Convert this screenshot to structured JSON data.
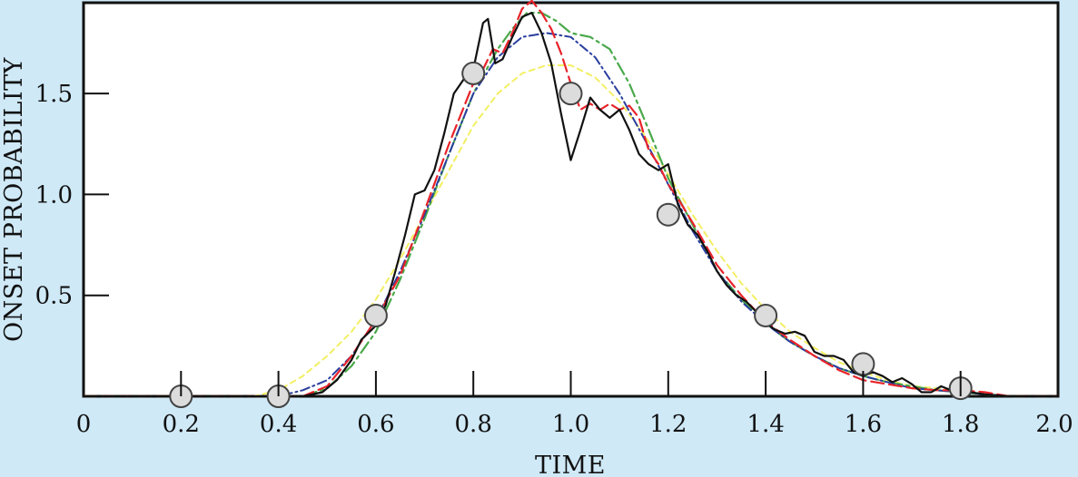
{
  "chart_data": {
    "type": "line",
    "title": "",
    "xlabel": "TIME",
    "ylabel": "ONSET PROBABILITY",
    "xlim": [
      0,
      2.0
    ],
    "ylim": [
      0,
      1.95
    ],
    "x_ticks": [
      0,
      0.2,
      0.4,
      0.6,
      0.8,
      1.0,
      1.2,
      1.4,
      1.6,
      1.8,
      2.0
    ],
    "x_tick_labels": [
      "0",
      "0.2",
      "0.4",
      "0.6",
      "0.8",
      "1.0",
      "1.2",
      "1.4",
      "1.6",
      "1.8",
      "2.0"
    ],
    "y_ticks": [
      0.5,
      1.0,
      1.5
    ],
    "y_tick_labels": [
      "0.5",
      "1.0",
      "1.5"
    ],
    "grid": false,
    "background": "#cfe9f7",
    "plot_background": "#ffffff",
    "markers": {
      "style": "circle",
      "fill": "#dcdcdc",
      "stroke": "#444444",
      "points": [
        {
          "x": 0.2,
          "y": 0.0
        },
        {
          "x": 0.4,
          "y": 0.0
        },
        {
          "x": 0.6,
          "y": 0.4
        },
        {
          "x": 0.8,
          "y": 1.6
        },
        {
          "x": 1.0,
          "y": 1.5
        },
        {
          "x": 1.2,
          "y": 0.9
        },
        {
          "x": 1.4,
          "y": 0.4
        },
        {
          "x": 1.6,
          "y": 0.16
        },
        {
          "x": 1.8,
          "y": 0.04
        }
      ]
    },
    "series": [
      {
        "color": "#111111",
        "dash": "solid",
        "width": 2.2,
        "x": [
          0.0,
          0.45,
          0.49,
          0.52,
          0.55,
          0.57,
          0.6,
          0.62,
          0.64,
          0.66,
          0.68,
          0.7,
          0.72,
          0.74,
          0.76,
          0.78,
          0.8,
          0.82,
          0.83,
          0.845,
          0.86,
          0.88,
          0.9,
          0.92,
          0.94,
          0.96,
          0.98,
          1.0,
          1.02,
          1.04,
          1.06,
          1.08,
          1.1,
          1.12,
          1.14,
          1.16,
          1.18,
          1.2,
          1.22,
          1.24,
          1.26,
          1.28,
          1.3,
          1.32,
          1.34,
          1.36,
          1.38,
          1.4,
          1.42,
          1.44,
          1.46,
          1.48,
          1.5,
          1.52,
          1.54,
          1.56,
          1.58,
          1.6,
          1.62,
          1.64,
          1.66,
          1.68,
          1.7,
          1.72,
          1.74,
          1.76,
          1.78,
          1.8,
          1.82,
          1.85,
          1.9,
          2.0
        ],
        "y": [
          0.0,
          0.0,
          0.02,
          0.08,
          0.18,
          0.28,
          0.35,
          0.45,
          0.62,
          0.8,
          1.0,
          1.02,
          1.12,
          1.3,
          1.5,
          1.57,
          1.62,
          1.85,
          1.87,
          1.65,
          1.67,
          1.78,
          1.88,
          1.9,
          1.8,
          1.65,
          1.4,
          1.17,
          1.32,
          1.48,
          1.42,
          1.38,
          1.42,
          1.32,
          1.2,
          1.15,
          1.12,
          1.15,
          0.95,
          0.85,
          0.8,
          0.72,
          0.62,
          0.55,
          0.5,
          0.47,
          0.42,
          0.36,
          0.33,
          0.31,
          0.32,
          0.3,
          0.22,
          0.2,
          0.2,
          0.18,
          0.12,
          0.1,
          0.12,
          0.1,
          0.07,
          0.09,
          0.06,
          0.02,
          0.02,
          0.05,
          0.03,
          0.06,
          0.02,
          0.01,
          0.0,
          0.0
        ]
      },
      {
        "color": "#e8232a",
        "dash": "long-dash",
        "width": 2.2,
        "x": [
          0.0,
          0.45,
          0.5,
          0.55,
          0.6,
          0.65,
          0.7,
          0.75,
          0.8,
          0.82,
          0.84,
          0.86,
          0.88,
          0.9,
          0.92,
          0.94,
          0.96,
          0.98,
          1.0,
          1.02,
          1.04,
          1.06,
          1.08,
          1.1,
          1.12,
          1.14,
          1.16,
          1.18,
          1.2,
          1.22,
          1.24,
          1.26,
          1.3,
          1.35,
          1.4,
          1.45,
          1.5,
          1.55,
          1.6,
          1.65,
          1.7,
          1.75,
          1.8,
          1.85,
          1.9,
          2.0
        ],
        "y": [
          0.0,
          0.0,
          0.05,
          0.2,
          0.38,
          0.6,
          0.92,
          1.25,
          1.55,
          1.62,
          1.72,
          1.7,
          1.8,
          1.92,
          1.96,
          1.9,
          1.82,
          1.7,
          1.55,
          1.42,
          1.45,
          1.42,
          1.45,
          1.42,
          1.44,
          1.38,
          1.22,
          1.15,
          1.05,
          0.98,
          0.9,
          0.82,
          0.65,
          0.5,
          0.37,
          0.28,
          0.2,
          0.13,
          0.08,
          0.06,
          0.04,
          0.03,
          0.03,
          0.02,
          0.0,
          0.0
        ]
      },
      {
        "color": "#2a3e9f",
        "dash": "dash-dot",
        "width": 2.0,
        "x": [
          0.0,
          0.4,
          0.45,
          0.5,
          0.55,
          0.6,
          0.65,
          0.7,
          0.75,
          0.8,
          0.85,
          0.9,
          0.95,
          1.0,
          1.05,
          1.1,
          1.15,
          1.2,
          1.25,
          1.3,
          1.35,
          1.4,
          1.45,
          1.5,
          1.55,
          1.6,
          1.65,
          1.7,
          1.75,
          1.8,
          1.9,
          2.0
        ],
        "y": [
          0.0,
          0.0,
          0.03,
          0.08,
          0.2,
          0.38,
          0.62,
          0.9,
          1.2,
          1.5,
          1.68,
          1.78,
          1.8,
          1.78,
          1.68,
          1.5,
          1.28,
          1.05,
          0.82,
          0.62,
          0.47,
          0.36,
          0.27,
          0.2,
          0.14,
          0.1,
          0.07,
          0.04,
          0.03,
          0.02,
          0.0,
          0.0
        ]
      },
      {
        "color": "#4aa84a",
        "dash": "long-dash-dot",
        "width": 2.2,
        "x": [
          0.0,
          0.45,
          0.5,
          0.55,
          0.6,
          0.65,
          0.7,
          0.75,
          0.8,
          0.85,
          0.88,
          0.91,
          0.94,
          0.97,
          1.0,
          1.04,
          1.08,
          1.12,
          1.16,
          1.2,
          1.25,
          1.3,
          1.35,
          1.4,
          1.45,
          1.5,
          1.55,
          1.6,
          1.65,
          1.7,
          1.75,
          1.8,
          1.85,
          1.9,
          2.0
        ],
        "y": [
          0.0,
          0.0,
          0.04,
          0.15,
          0.32,
          0.58,
          0.88,
          1.2,
          1.5,
          1.72,
          1.82,
          1.9,
          1.9,
          1.86,
          1.8,
          1.78,
          1.72,
          1.55,
          1.32,
          1.08,
          0.85,
          0.62,
          0.48,
          0.36,
          0.27,
          0.2,
          0.14,
          0.1,
          0.07,
          0.05,
          0.03,
          0.02,
          0.01,
          0.0,
          0.0
        ]
      },
      {
        "color": "#f3ef63",
        "dash": "short-dash",
        "width": 2.0,
        "x": [
          0.0,
          0.35,
          0.4,
          0.45,
          0.5,
          0.55,
          0.6,
          0.65,
          0.7,
          0.75,
          0.8,
          0.85,
          0.9,
          0.95,
          1.0,
          1.05,
          1.1,
          1.15,
          1.2,
          1.25,
          1.3,
          1.35,
          1.4,
          1.45,
          1.5,
          1.55,
          1.6,
          1.65,
          1.7,
          1.75,
          1.8,
          1.85,
          1.9,
          2.0
        ],
        "y": [
          0.0,
          0.0,
          0.03,
          0.1,
          0.2,
          0.32,
          0.48,
          0.68,
          0.9,
          1.12,
          1.34,
          1.5,
          1.6,
          1.64,
          1.64,
          1.58,
          1.46,
          1.3,
          1.1,
          0.9,
          0.72,
          0.56,
          0.43,
          0.32,
          0.24,
          0.17,
          0.12,
          0.08,
          0.05,
          0.04,
          0.02,
          0.01,
          0.0,
          0.0
        ]
      }
    ]
  }
}
